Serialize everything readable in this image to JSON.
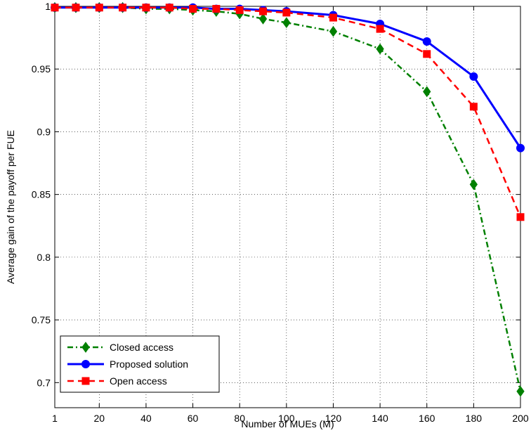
{
  "chart_data": {
    "type": "line",
    "title": "",
    "xlabel": "Number of MUEs (M)",
    "ylabel": "Average gain of the payoff per FUE",
    "xlim": [
      1,
      200
    ],
    "ylim": [
      0.68,
      1.0
    ],
    "x_ticks": [
      1,
      20,
      40,
      60,
      80,
      100,
      120,
      140,
      160,
      180,
      200
    ],
    "x_tick_labels": [
      "1",
      "20",
      "40",
      "60",
      "80",
      "100",
      "120",
      "140",
      "160",
      "180",
      "200"
    ],
    "y_ticks": [
      0.7,
      0.75,
      0.8,
      0.85,
      0.9,
      0.95,
      1.0
    ],
    "y_tick_labels": [
      "0.7",
      "0.75",
      "0.8",
      "0.85",
      "0.9",
      "0.95",
      "1"
    ],
    "grid": true,
    "legend_position": "bottom-left",
    "series": [
      {
        "name": "Closed access",
        "color": "#008000",
        "line_style": "dash-dot",
        "marker": "diamond",
        "x": [
          1,
          10,
          20,
          30,
          40,
          50,
          60,
          70,
          80,
          90,
          100,
          120,
          140,
          160,
          180,
          200
        ],
        "y": [
          0.999,
          0.999,
          0.999,
          0.999,
          0.998,
          0.998,
          0.997,
          0.996,
          0.994,
          0.99,
          0.987,
          0.98,
          0.966,
          0.932,
          0.858,
          0.693
        ]
      },
      {
        "name": "Proposed solution",
        "color": "#0000ff",
        "line_style": "solid",
        "marker": "circle",
        "x": [
          1,
          10,
          20,
          30,
          40,
          50,
          60,
          70,
          80,
          90,
          100,
          120,
          140,
          160,
          180,
          200
        ],
        "y": [
          0.999,
          0.999,
          0.999,
          0.999,
          0.999,
          0.999,
          0.999,
          0.998,
          0.998,
          0.997,
          0.996,
          0.993,
          0.986,
          0.972,
          0.944,
          0.887
        ]
      },
      {
        "name": "Open access",
        "color": "#ff0000",
        "line_style": "dashed",
        "marker": "square",
        "x": [
          1,
          10,
          20,
          30,
          40,
          50,
          60,
          70,
          80,
          90,
          100,
          120,
          140,
          160,
          180,
          200
        ],
        "y": [
          0.999,
          0.999,
          0.999,
          0.999,
          0.999,
          0.999,
          0.998,
          0.998,
          0.997,
          0.996,
          0.995,
          0.991,
          0.982,
          0.962,
          0.92,
          0.832
        ]
      }
    ]
  }
}
